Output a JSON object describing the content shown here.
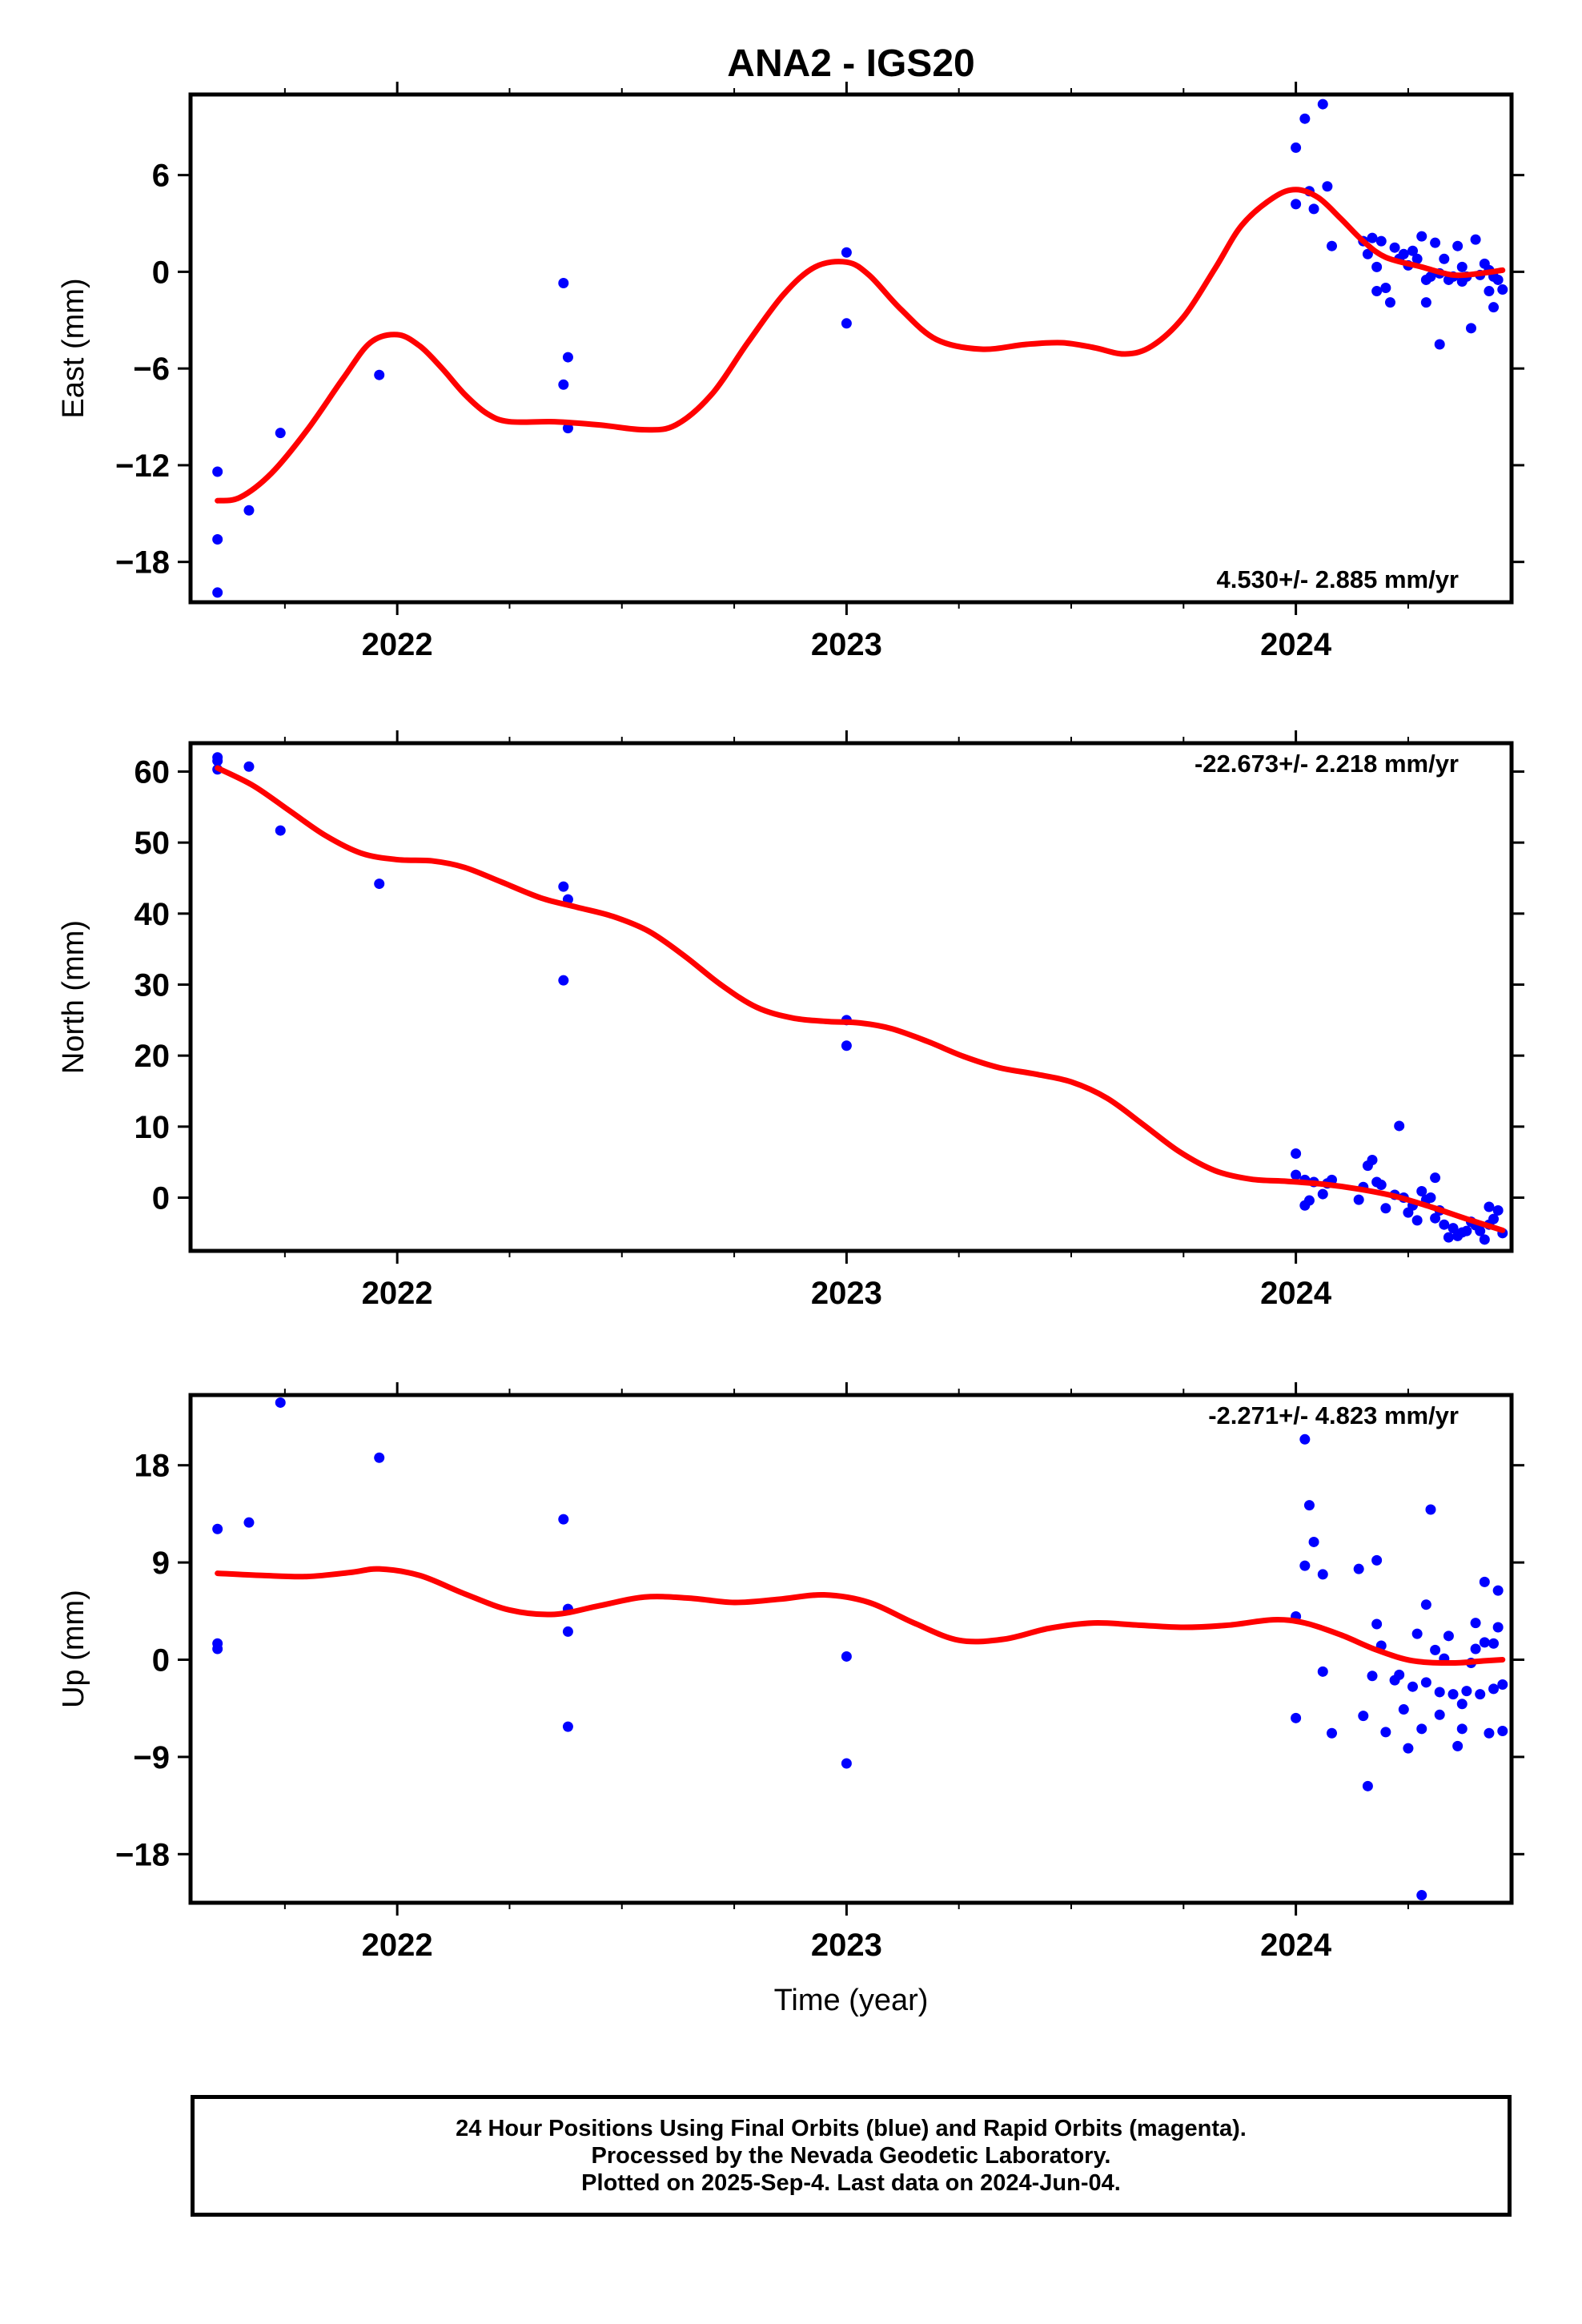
{
  "title": "ANA2 - IGS20",
  "xlabel": "Time (year)",
  "colors": {
    "points": "#0000ff",
    "fit": "#ff0000",
    "frame": "#000000"
  },
  "footer": {
    "line1": "24 Hour Positions Using Final Orbits (blue) and Rapid Orbits (magenta).",
    "line2": "Processed by the Nevada Geodetic Laboratory.",
    "line3": "Plotted on 2025-Sep-4. Last data on 2024-Jun-04."
  },
  "chart_data": [
    {
      "type": "scatter",
      "panel": "east",
      "ylabel": "East (mm)",
      "rate": "4.530+/- 2.885 mm/yr",
      "rate_position": "bottom-right",
      "xlim": [
        2021.54,
        2024.48
      ],
      "ylim": [
        -20.5,
        11
      ],
      "xticks": [
        2022,
        2023,
        2024
      ],
      "xtick_labels": [
        "2022",
        "2023",
        "2024"
      ],
      "yticks": [
        6,
        0,
        -6,
        -12,
        -18
      ],
      "ytick_labels": [
        "6",
        "0",
        "−6",
        "−12",
        "−18"
      ],
      "points": [
        [
          2021.6,
          -12.4
        ],
        [
          2021.6,
          -16.6
        ],
        [
          2021.6,
          -19.9
        ],
        [
          2021.67,
          -14.8
        ],
        [
          2021.74,
          -10.0
        ],
        [
          2021.96,
          -6.4
        ],
        [
          2022.37,
          -0.7
        ],
        [
          2022.37,
          -7.0
        ],
        [
          2022.38,
          -5.3
        ],
        [
          2022.38,
          -9.7
        ],
        [
          2023.0,
          1.2
        ],
        [
          2023.0,
          -3.2
        ],
        [
          2024.0,
          7.7
        ],
        [
          2024.0,
          4.2
        ],
        [
          2024.02,
          9.5
        ],
        [
          2024.03,
          5.0
        ],
        [
          2024.04,
          3.9
        ],
        [
          2024.06,
          10.4
        ],
        [
          2024.07,
          5.3
        ],
        [
          2024.08,
          1.6
        ],
        [
          2024.15,
          1.9
        ],
        [
          2024.16,
          1.1
        ],
        [
          2024.17,
          2.1
        ],
        [
          2024.18,
          0.3
        ],
        [
          2024.19,
          1.9
        ],
        [
          2024.18,
          -1.2
        ],
        [
          2024.2,
          -1.0
        ],
        [
          2024.21,
          -1.9
        ],
        [
          2024.22,
          1.5
        ],
        [
          2024.23,
          0.8
        ],
        [
          2024.24,
          1.1
        ],
        [
          2024.25,
          0.4
        ],
        [
          2024.26,
          1.3
        ],
        [
          2024.27,
          0.8
        ],
        [
          2024.28,
          2.2
        ],
        [
          2024.29,
          -0.5
        ],
        [
          2024.29,
          -1.9
        ],
        [
          2024.3,
          -0.3
        ],
        [
          2024.31,
          1.8
        ],
        [
          2024.32,
          -0.1
        ],
        [
          2024.32,
          -4.5
        ],
        [
          2024.33,
          0.8
        ],
        [
          2024.34,
          -0.5
        ],
        [
          2024.35,
          -0.3
        ],
        [
          2024.36,
          1.6
        ],
        [
          2024.37,
          -0.6
        ],
        [
          2024.37,
          0.3
        ],
        [
          2024.38,
          -0.3
        ],
        [
          2024.39,
          -3.5
        ],
        [
          2024.4,
          2.0
        ],
        [
          2024.41,
          -0.2
        ],
        [
          2024.42,
          0.5
        ],
        [
          2024.43,
          -1.2
        ],
        [
          2024.43,
          0.1
        ],
        [
          2024.44,
          -0.3
        ],
        [
          2024.44,
          -2.2
        ],
        [
          2024.45,
          -0.5
        ],
        [
          2024.46,
          -1.1
        ]
      ],
      "fit": [
        [
          2021.6,
          -14.2
        ],
        [
          2021.65,
          -14.0
        ],
        [
          2021.72,
          -12.5
        ],
        [
          2021.8,
          -9.8
        ],
        [
          2021.88,
          -6.6
        ],
        [
          2021.94,
          -4.4
        ],
        [
          2022.0,
          -3.9
        ],
        [
          2022.05,
          -4.6
        ],
        [
          2022.1,
          -6.0
        ],
        [
          2022.15,
          -7.6
        ],
        [
          2022.2,
          -8.8
        ],
        [
          2022.25,
          -9.3
        ],
        [
          2022.35,
          -9.3
        ],
        [
          2022.45,
          -9.5
        ],
        [
          2022.55,
          -9.8
        ],
        [
          2022.62,
          -9.5
        ],
        [
          2022.7,
          -7.6
        ],
        [
          2022.78,
          -4.4
        ],
        [
          2022.86,
          -1.4
        ],
        [
          2022.93,
          0.3
        ],
        [
          2023.0,
          0.6
        ],
        [
          2023.05,
          -0.2
        ],
        [
          2023.12,
          -2.3
        ],
        [
          2023.2,
          -4.2
        ],
        [
          2023.3,
          -4.8
        ],
        [
          2023.4,
          -4.5
        ],
        [
          2023.48,
          -4.4
        ],
        [
          2023.55,
          -4.7
        ],
        [
          2023.62,
          -5.1
        ],
        [
          2023.68,
          -4.6
        ],
        [
          2023.75,
          -2.8
        ],
        [
          2023.82,
          0.2
        ],
        [
          2023.88,
          2.9
        ],
        [
          2023.95,
          4.6
        ],
        [
          2024.0,
          5.1
        ],
        [
          2024.05,
          4.6
        ],
        [
          2024.1,
          3.3
        ],
        [
          2024.15,
          1.9
        ],
        [
          2024.2,
          0.9
        ],
        [
          2024.28,
          0.3
        ],
        [
          2024.35,
          -0.2
        ],
        [
          2024.41,
          -0.1
        ],
        [
          2024.46,
          0.1
        ]
      ]
    },
    {
      "type": "scatter",
      "panel": "north",
      "ylabel": "North (mm)",
      "rate": "-22.673+/- 2.218 mm/yr",
      "rate_position": "top-right",
      "xlim": [
        2021.54,
        2024.48
      ],
      "ylim": [
        -7.5,
        64
      ],
      "xticks": [
        2022,
        2023,
        2024
      ],
      "xtick_labels": [
        "2022",
        "2023",
        "2024"
      ],
      "yticks": [
        60,
        50,
        40,
        30,
        20,
        10,
        0
      ],
      "ytick_labels": [
        "60",
        "50",
        "40",
        "30",
        "20",
        "10",
        "0"
      ],
      "points": [
        [
          2021.6,
          62.0
        ],
        [
          2021.6,
          61.5
        ],
        [
          2021.6,
          60.3
        ],
        [
          2021.67,
          60.7
        ],
        [
          2021.74,
          51.7
        ],
        [
          2021.96,
          44.2
        ],
        [
          2022.37,
          43.8
        ],
        [
          2022.38,
          42.0
        ],
        [
          2022.37,
          30.6
        ],
        [
          2023.0,
          25.0
        ],
        [
          2023.0,
          21.4
        ],
        [
          2024.0,
          6.2
        ],
        [
          2024.0,
          3.2
        ],
        [
          2024.02,
          2.5
        ],
        [
          2024.02,
          -1.1
        ],
        [
          2024.03,
          -0.4
        ],
        [
          2024.04,
          2.2
        ],
        [
          2024.06,
          0.5
        ],
        [
          2024.07,
          2.0
        ],
        [
          2024.08,
          2.5
        ],
        [
          2024.14,
          -0.3
        ],
        [
          2024.15,
          1.5
        ],
        [
          2024.16,
          4.5
        ],
        [
          2024.17,
          5.3
        ],
        [
          2024.18,
          2.2
        ],
        [
          2024.19,
          1.8
        ],
        [
          2024.2,
          -1.5
        ],
        [
          2024.22,
          0.4
        ],
        [
          2024.23,
          10.1
        ],
        [
          2024.24,
          0.0
        ],
        [
          2024.25,
          -2.1
        ],
        [
          2024.26,
          -1.1
        ],
        [
          2024.27,
          -3.2
        ],
        [
          2024.28,
          0.9
        ],
        [
          2024.29,
          -0.3
        ],
        [
          2024.3,
          0.0
        ],
        [
          2024.31,
          2.8
        ],
        [
          2024.31,
          -2.9
        ],
        [
          2024.32,
          -1.8
        ],
        [
          2024.33,
          -3.8
        ],
        [
          2024.34,
          -5.6
        ],
        [
          2024.35,
          -4.3
        ],
        [
          2024.36,
          -5.4
        ],
        [
          2024.37,
          -4.9
        ],
        [
          2024.38,
          -4.7
        ],
        [
          2024.39,
          -3.4
        ],
        [
          2024.4,
          -3.9
        ],
        [
          2024.41,
          -4.7
        ],
        [
          2024.42,
          -5.9
        ],
        [
          2024.43,
          -3.8
        ],
        [
          2024.43,
          -1.3
        ],
        [
          2024.44,
          -3.0
        ],
        [
          2024.45,
          -1.8
        ],
        [
          2024.46,
          -5.0
        ]
      ],
      "fit": [
        [
          2021.6,
          60.5
        ],
        [
          2021.68,
          58.0
        ],
        [
          2021.76,
          54.5
        ],
        [
          2021.84,
          51.0
        ],
        [
          2021.92,
          48.5
        ],
        [
          2022.0,
          47.6
        ],
        [
          2022.08,
          47.4
        ],
        [
          2022.15,
          46.5
        ],
        [
          2022.23,
          44.5
        ],
        [
          2022.32,
          42.2
        ],
        [
          2022.4,
          40.9
        ],
        [
          2022.48,
          39.6
        ],
        [
          2022.56,
          37.5
        ],
        [
          2022.64,
          34.0
        ],
        [
          2022.72,
          30.0
        ],
        [
          2022.8,
          26.8
        ],
        [
          2022.88,
          25.3
        ],
        [
          2022.96,
          24.8
        ],
        [
          2023.03,
          24.6
        ],
        [
          2023.1,
          23.8
        ],
        [
          2023.18,
          22.0
        ],
        [
          2023.26,
          19.9
        ],
        [
          2023.34,
          18.3
        ],
        [
          2023.42,
          17.4
        ],
        [
          2023.5,
          16.3
        ],
        [
          2023.58,
          14.0
        ],
        [
          2023.66,
          10.3
        ],
        [
          2023.74,
          6.5
        ],
        [
          2023.82,
          3.8
        ],
        [
          2023.9,
          2.6
        ],
        [
          2023.98,
          2.3
        ],
        [
          2024.06,
          1.9
        ],
        [
          2024.14,
          1.2
        ],
        [
          2024.22,
          0.2
        ],
        [
          2024.3,
          -1.3
        ],
        [
          2024.38,
          -3.0
        ],
        [
          2024.46,
          -4.6
        ]
      ]
    },
    {
      "type": "scatter",
      "panel": "up",
      "ylabel": "Up (mm)",
      "rate": "-2.271+/- 4.823 mm/yr",
      "rate_position": "top-right",
      "xlim": [
        2021.54,
        2024.48
      ],
      "ylim": [
        -22.5,
        24.5
      ],
      "xticks": [
        2022,
        2023,
        2024
      ],
      "xtick_labels": [
        "2022",
        "2023",
        "2024"
      ],
      "yticks": [
        18,
        9,
        0,
        -9,
        -18
      ],
      "ytick_labels": [
        "18",
        "9",
        "0",
        "−9",
        "−18"
      ],
      "points": [
        [
          2021.6,
          12.1
        ],
        [
          2021.6,
          1.5
        ],
        [
          2021.6,
          1.0
        ],
        [
          2021.67,
          12.7
        ],
        [
          2021.74,
          23.8
        ],
        [
          2021.96,
          18.7
        ],
        [
          2022.37,
          13.0
        ],
        [
          2022.38,
          4.7
        ],
        [
          2022.38,
          2.6
        ],
        [
          2022.38,
          -6.2
        ],
        [
          2023.0,
          0.3
        ],
        [
          2023.0,
          -9.6
        ],
        [
          2024.0,
          -5.4
        ],
        [
          2024.0,
          4.0
        ],
        [
          2024.02,
          20.4
        ],
        [
          2024.02,
          8.7
        ],
        [
          2024.03,
          14.3
        ],
        [
          2024.04,
          10.9
        ],
        [
          2024.06,
          7.9
        ],
        [
          2024.06,
          -1.1
        ],
        [
          2024.08,
          -6.8
        ],
        [
          2024.14,
          8.4
        ],
        [
          2024.15,
          -5.2
        ],
        [
          2024.16,
          -11.7
        ],
        [
          2024.17,
          -1.5
        ],
        [
          2024.18,
          9.2
        ],
        [
          2024.18,
          3.3
        ],
        [
          2024.19,
          1.3
        ],
        [
          2024.2,
          -6.7
        ],
        [
          2024.22,
          -1.9
        ],
        [
          2024.23,
          -1.4
        ],
        [
          2024.24,
          -4.6
        ],
        [
          2024.25,
          -8.2
        ],
        [
          2024.26,
          -2.5
        ],
        [
          2024.27,
          2.4
        ],
        [
          2024.28,
          -6.4
        ],
        [
          2024.29,
          5.1
        ],
        [
          2024.29,
          -2.1
        ],
        [
          2024.3,
          13.9
        ],
        [
          2024.31,
          0.9
        ],
        [
          2024.32,
          -5.1
        ],
        [
          2024.32,
          -3.0
        ],
        [
          2024.33,
          0.1
        ],
        [
          2024.34,
          2.2
        ],
        [
          2024.35,
          -3.2
        ],
        [
          2024.36,
          -8.0
        ],
        [
          2024.37,
          -4.1
        ],
        [
          2024.37,
          -6.4
        ],
        [
          2024.38,
          -2.9
        ],
        [
          2024.39,
          -0.3
        ],
        [
          2024.4,
          3.4
        ],
        [
          2024.4,
          1.0
        ],
        [
          2024.41,
          -3.2
        ],
        [
          2024.42,
          7.2
        ],
        [
          2024.42,
          1.6
        ],
        [
          2024.43,
          -6.8
        ],
        [
          2024.44,
          -2.7
        ],
        [
          2024.44,
          1.5
        ],
        [
          2024.45,
          6.4
        ],
        [
          2024.45,
          3.0
        ],
        [
          2024.46,
          -2.3
        ],
        [
          2024.46,
          -6.6
        ],
        [
          2024.28,
          -21.8
        ]
      ],
      "fit": [
        [
          2021.6,
          8.0
        ],
        [
          2021.7,
          7.8
        ],
        [
          2021.8,
          7.7
        ],
        [
          2021.9,
          8.1
        ],
        [
          2021.96,
          8.4
        ],
        [
          2022.05,
          7.8
        ],
        [
          2022.15,
          6.1
        ],
        [
          2022.25,
          4.6
        ],
        [
          2022.35,
          4.2
        ],
        [
          2022.45,
          5.0
        ],
        [
          2022.55,
          5.8
        ],
        [
          2022.65,
          5.7
        ],
        [
          2022.75,
          5.3
        ],
        [
          2022.85,
          5.6
        ],
        [
          2022.95,
          6.0
        ],
        [
          2023.05,
          5.3
        ],
        [
          2023.15,
          3.4
        ],
        [
          2023.25,
          1.8
        ],
        [
          2023.35,
          1.9
        ],
        [
          2023.45,
          2.9
        ],
        [
          2023.55,
          3.4
        ],
        [
          2023.65,
          3.2
        ],
        [
          2023.75,
          3.0
        ],
        [
          2023.85,
          3.2
        ],
        [
          2023.95,
          3.7
        ],
        [
          2024.02,
          3.4
        ],
        [
          2024.1,
          2.3
        ],
        [
          2024.18,
          0.9
        ],
        [
          2024.26,
          -0.1
        ],
        [
          2024.35,
          -0.3
        ],
        [
          2024.42,
          -0.1
        ],
        [
          2024.46,
          0.0
        ]
      ]
    }
  ]
}
